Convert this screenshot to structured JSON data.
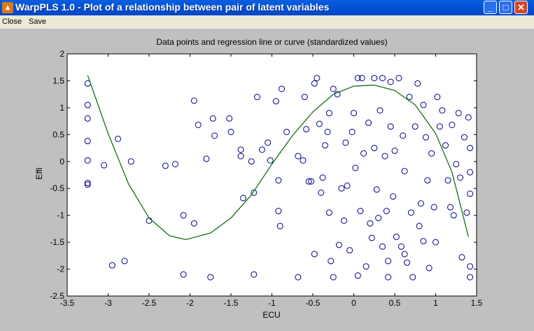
{
  "window": {
    "title": "WarpPLS 1.0 - Plot of a relationship between pair of latent variables",
    "minimize": "_",
    "maximize": "□",
    "close": "✕"
  },
  "menu": {
    "close": "Close",
    "save": "Save"
  },
  "chart_data": {
    "type": "scatter",
    "title": "Data points and regression line or curve (standardized values)",
    "xlabel": "ECU",
    "ylabel": "Effi",
    "xlim": [
      -3.5,
      1.5
    ],
    "ylim": [
      -2.5,
      2
    ],
    "xticks": [
      -3.5,
      -3,
      -2.5,
      -2,
      -1.5,
      -1,
      -0.5,
      0,
      0.5,
      1,
      1.5
    ],
    "yticks": [
      -2.5,
      -2,
      -1.5,
      -1,
      -0.5,
      0,
      0.5,
      1,
      1.5,
      2
    ],
    "grid": false,
    "marker_color": "#00008b",
    "curve_color": "#006400",
    "points": [
      [
        -3.25,
        1.45
      ],
      [
        -3.25,
        1.05
      ],
      [
        -3.25,
        0.8
      ],
      [
        -3.25,
        0.38
      ],
      [
        -3.25,
        0.02
      ],
      [
        -3.25,
        -0.4
      ],
      [
        -3.25,
        -0.43
      ],
      [
        -3.05,
        -0.07
      ],
      [
        -2.95,
        -1.93
      ],
      [
        -2.88,
        0.42
      ],
      [
        -2.8,
        -1.85
      ],
      [
        -2.72,
        0.0
      ],
      [
        -2.5,
        -1.1
      ],
      [
        -2.3,
        -0.08
      ],
      [
        -2.18,
        -0.05
      ],
      [
        -2.08,
        -1.0
      ],
      [
        -2.08,
        -2.1
      ],
      [
        -1.95,
        -1.15
      ],
      [
        -1.95,
        1.13
      ],
      [
        -1.9,
        0.68
      ],
      [
        -1.8,
        0.05
      ],
      [
        -1.75,
        -2.15
      ],
      [
        -1.72,
        0.8
      ],
      [
        -1.7,
        0.48
      ],
      [
        -1.52,
        0.8
      ],
      [
        -1.5,
        0.55
      ],
      [
        -1.38,
        0.22
      ],
      [
        -1.38,
        0.1
      ],
      [
        -1.35,
        -0.68
      ],
      [
        -1.25,
        0.0
      ],
      [
        -1.22,
        -0.58
      ],
      [
        -1.22,
        -2.1
      ],
      [
        -1.18,
        1.2
      ],
      [
        -1.12,
        0.22
      ],
      [
        -1.05,
        0.35
      ],
      [
        -1.02,
        0.02
      ],
      [
        -0.95,
        1.12
      ],
      [
        -0.92,
        -0.35
      ],
      [
        -0.92,
        -0.92
      ],
      [
        -0.9,
        -1.2
      ],
      [
        -0.88,
        1.35
      ],
      [
        -0.82,
        0.55
      ],
      [
        -0.68,
        0.1
      ],
      [
        -0.68,
        -2.15
      ],
      [
        -0.62,
        0.02
      ],
      [
        -0.6,
        1.2
      ],
      [
        -0.58,
        0.6
      ],
      [
        -0.55,
        -0.37
      ],
      [
        -0.52,
        -0.37
      ],
      [
        -0.48,
        1.45
      ],
      [
        -0.48,
        -1.72
      ],
      [
        -0.45,
        1.55
      ],
      [
        -0.42,
        0.7
      ],
      [
        -0.4,
        -0.58
      ],
      [
        -0.38,
        -0.3
      ],
      [
        -0.35,
        0.3
      ],
      [
        -0.32,
        0.55
      ],
      [
        -0.3,
        0.9
      ],
      [
        -0.3,
        -0.95
      ],
      [
        -0.28,
        -1.85
      ],
      [
        -0.25,
        1.35
      ],
      [
        -0.25,
        -2.15
      ],
      [
        -0.2,
        1.25
      ],
      [
        -0.18,
        -1.55
      ],
      [
        -0.15,
        -0.5
      ],
      [
        -0.12,
        -1.1
      ],
      [
        -0.1,
        0.35
      ],
      [
        -0.08,
        -0.45
      ],
      [
        -0.05,
        -1.65
      ],
      [
        -0.02,
        0.55
      ],
      [
        0.0,
        0.9
      ],
      [
        0.02,
        -0.12
      ],
      [
        0.05,
        1.55
      ],
      [
        0.05,
        -2.12
      ],
      [
        0.08,
        -0.92
      ],
      [
        0.1,
        1.55
      ],
      [
        0.12,
        0.15
      ],
      [
        0.15,
        -1.95
      ],
      [
        0.18,
        0.72
      ],
      [
        0.2,
        -1.15
      ],
      [
        0.22,
        -1.42
      ],
      [
        0.25,
        1.55
      ],
      [
        0.25,
        0.25
      ],
      [
        0.28,
        -0.52
      ],
      [
        0.3,
        -1.05
      ],
      [
        0.32,
        0.95
      ],
      [
        0.35,
        1.55
      ],
      [
        0.35,
        -1.58
      ],
      [
        0.38,
        0.1
      ],
      [
        0.4,
        -0.92
      ],
      [
        0.42,
        -1.85
      ],
      [
        0.42,
        -2.15
      ],
      [
        0.45,
        1.48
      ],
      [
        0.45,
        0.65
      ],
      [
        0.48,
        -0.65
      ],
      [
        0.5,
        0.2
      ],
      [
        0.52,
        -1.4
      ],
      [
        0.55,
        1.55
      ],
      [
        0.58,
        -1.58
      ],
      [
        0.6,
        0.48
      ],
      [
        0.62,
        -0.18
      ],
      [
        0.62,
        -1.72
      ],
      [
        0.65,
        -1.88
      ],
      [
        0.68,
        1.2
      ],
      [
        0.7,
        -0.95
      ],
      [
        0.72,
        -2.15
      ],
      [
        0.75,
        0.65
      ],
      [
        0.78,
        1.45
      ],
      [
        0.8,
        -1.2
      ],
      [
        0.82,
        -0.78
      ],
      [
        0.85,
        1.05
      ],
      [
        0.85,
        -1.48
      ],
      [
        0.88,
        0.45
      ],
      [
        0.9,
        -0.35
      ],
      [
        0.92,
        -1.98
      ],
      [
        0.95,
        0.15
      ],
      [
        0.98,
        -0.85
      ],
      [
        1.0,
        -1.5
      ],
      [
        1.02,
        1.2
      ],
      [
        1.05,
        0.65
      ],
      [
        1.08,
        0.95
      ],
      [
        1.12,
        0.3
      ],
      [
        1.15,
        -0.35
      ],
      [
        1.18,
        -0.85
      ],
      [
        1.2,
        0.68
      ],
      [
        1.22,
        -1.0
      ],
      [
        1.25,
        -0.05
      ],
      [
        1.28,
        0.9
      ],
      [
        1.3,
        -0.3
      ],
      [
        1.32,
        -1.78
      ],
      [
        1.35,
        0.45
      ],
      [
        1.38,
        -0.95
      ],
      [
        1.4,
        0.82
      ],
      [
        1.42,
        0.25
      ],
      [
        1.42,
        -0.2
      ],
      [
        1.42,
        -0.6
      ],
      [
        1.42,
        -1.95
      ],
      [
        1.42,
        -2.15
      ]
    ],
    "curve": [
      [
        -3.25,
        1.6
      ],
      [
        -3.0,
        0.52
      ],
      [
        -2.75,
        -0.42
      ],
      [
        -2.5,
        -1.05
      ],
      [
        -2.25,
        -1.38
      ],
      [
        -2.05,
        -1.45
      ],
      [
        -1.75,
        -1.33
      ],
      [
        -1.5,
        -1.05
      ],
      [
        -1.25,
        -0.62
      ],
      [
        -1.0,
        -0.05
      ],
      [
        -0.75,
        0.48
      ],
      [
        -0.5,
        0.92
      ],
      [
        -0.25,
        1.25
      ],
      [
        0.0,
        1.4
      ],
      [
        0.25,
        1.42
      ],
      [
        0.5,
        1.32
      ],
      [
        0.75,
        1.05
      ],
      [
        1.0,
        0.52
      ],
      [
        1.2,
        -0.2
      ],
      [
        1.4,
        -1.4
      ]
    ]
  }
}
